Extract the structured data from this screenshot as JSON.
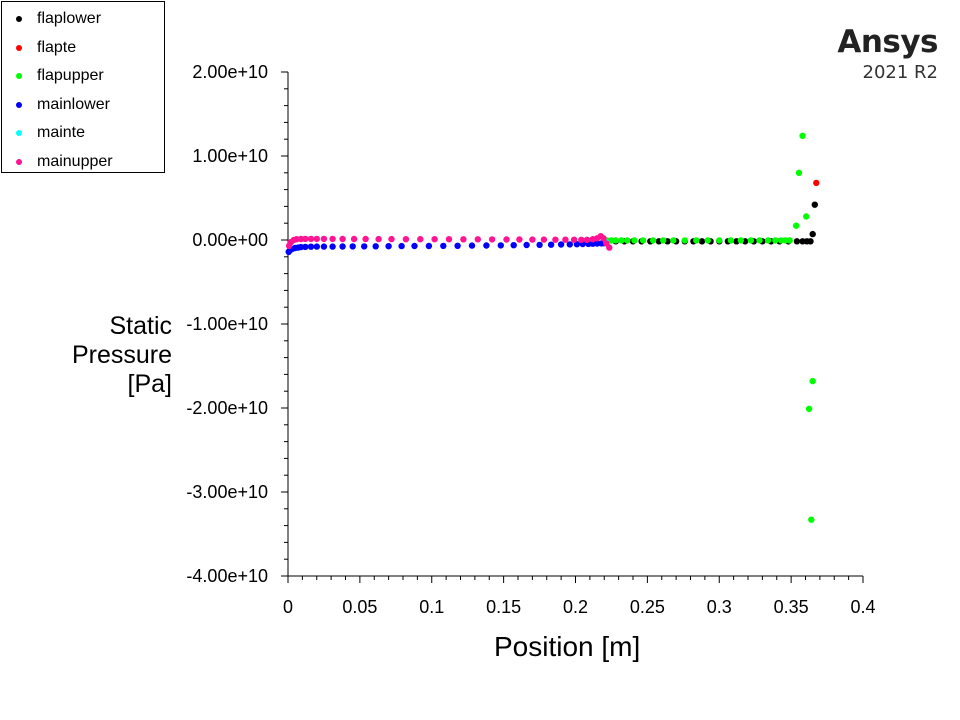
{
  "chart_data": {
    "type": "scatter",
    "xlabel": "Position [m]",
    "ylabel_lines": [
      "Static",
      "Pressure",
      "[Pa]"
    ],
    "xlim": [
      0,
      0.4
    ],
    "ylim": [
      -40000000000,
      20000000000
    ],
    "xticks": [
      "0",
      "0.05",
      "0.1",
      "0.15",
      "0.2",
      "0.25",
      "0.3",
      "0.35",
      "0.4"
    ],
    "yticks": [
      "2.00e+10",
      "1.00e+10",
      "0.00e+00",
      "-1.00e+10",
      "-2.00e+10",
      "-3.00e+10",
      "-4.00e+10"
    ],
    "grid": false,
    "legend_position": "top-left",
    "series": [
      {
        "name": "flaplower",
        "color": "#000000",
        "points": [
          [
            0.222,
            -150000000
          ],
          [
            0.228,
            -150000000
          ],
          [
            0.234,
            -150000000
          ],
          [
            0.24,
            -150000000
          ],
          [
            0.246,
            -150000000
          ],
          [
            0.252,
            -150000000
          ],
          [
            0.258,
            -150000000
          ],
          [
            0.264,
            -150000000
          ],
          [
            0.27,
            -150000000
          ],
          [
            0.276,
            -150000000
          ],
          [
            0.282,
            -150000000
          ],
          [
            0.288,
            -150000000
          ],
          [
            0.294,
            -150000000
          ],
          [
            0.3,
            -150000000
          ],
          [
            0.306,
            -150000000
          ],
          [
            0.312,
            -150000000
          ],
          [
            0.318,
            -150000000
          ],
          [
            0.324,
            -150000000
          ],
          [
            0.33,
            -150000000
          ],
          [
            0.336,
            -150000000
          ],
          [
            0.342,
            -150000000
          ],
          [
            0.348,
            -150000000
          ],
          [
            0.354,
            -150000000
          ],
          [
            0.358,
            -150000000
          ],
          [
            0.361,
            -150000000
          ],
          [
            0.3635,
            -150000000
          ],
          [
            0.365,
            700000000
          ],
          [
            0.3665,
            4200000000
          ]
        ]
      },
      {
        "name": "flapte",
        "color": "#ff0000",
        "points": [
          [
            0.3675,
            6800000000
          ]
        ]
      },
      {
        "name": "flapupper",
        "color": "#00ff00",
        "points": [
          [
            0.222,
            -50000000
          ],
          [
            0.225,
            -50000000
          ],
          [
            0.228,
            -50000000
          ],
          [
            0.232,
            -50000000
          ],
          [
            0.236,
            -50000000
          ],
          [
            0.241,
            -50000000
          ],
          [
            0.247,
            -50000000
          ],
          [
            0.254,
            -50000000
          ],
          [
            0.261,
            -50000000
          ],
          [
            0.268,
            -50000000
          ],
          [
            0.276,
            -50000000
          ],
          [
            0.284,
            -50000000
          ],
          [
            0.292,
            -50000000
          ],
          [
            0.3,
            -50000000
          ],
          [
            0.308,
            -50000000
          ],
          [
            0.315,
            -50000000
          ],
          [
            0.322,
            -50000000
          ],
          [
            0.328,
            -50000000
          ],
          [
            0.334,
            -50000000
          ],
          [
            0.339,
            -50000000
          ],
          [
            0.343,
            -50000000
          ],
          [
            0.346,
            -50000000
          ],
          [
            0.349,
            -50000000
          ],
          [
            0.3535,
            1700000000
          ],
          [
            0.3555,
            8000000000
          ],
          [
            0.358,
            12400000000
          ],
          [
            0.3605,
            2800000000
          ],
          [
            0.3625,
            -20100000000
          ],
          [
            0.364,
            -33300000000
          ],
          [
            0.365,
            -16800000000
          ]
        ]
      },
      {
        "name": "mainlower",
        "color": "#0000ff",
        "points": [
          [
            0.0005,
            -1400000000
          ],
          [
            0.0015,
            -1200000000
          ],
          [
            0.003,
            -1050000000
          ],
          [
            0.005,
            -950000000
          ],
          [
            0.007,
            -900000000
          ],
          [
            0.009,
            -850000000
          ],
          [
            0.012,
            -820000000
          ],
          [
            0.016,
            -800000000
          ],
          [
            0.02,
            -790000000
          ],
          [
            0.025,
            -780000000
          ],
          [
            0.031,
            -780000000
          ],
          [
            0.038,
            -770000000
          ],
          [
            0.045,
            -760000000
          ],
          [
            0.053,
            -760000000
          ],
          [
            0.061,
            -750000000
          ],
          [
            0.07,
            -740000000
          ],
          [
            0.079,
            -730000000
          ],
          [
            0.088,
            -720000000
          ],
          [
            0.098,
            -710000000
          ],
          [
            0.108,
            -700000000
          ],
          [
            0.118,
            -690000000
          ],
          [
            0.128,
            -670000000
          ],
          [
            0.138,
            -660000000
          ],
          [
            0.148,
            -640000000
          ],
          [
            0.157,
            -620000000
          ],
          [
            0.166,
            -600000000
          ],
          [
            0.175,
            -580000000
          ],
          [
            0.183,
            -560000000
          ],
          [
            0.19,
            -540000000
          ],
          [
            0.196,
            -520000000
          ],
          [
            0.201,
            -500000000
          ],
          [
            0.205,
            -480000000
          ],
          [
            0.209,
            -460000000
          ],
          [
            0.212,
            -440000000
          ],
          [
            0.215,
            -420000000
          ],
          [
            0.218,
            -400000000
          ],
          [
            0.22,
            -380000000
          ]
        ]
      },
      {
        "name": "mainte",
        "color": "#00ffff",
        "points": [
          [
            0.2215,
            -300000000
          ]
        ]
      },
      {
        "name": "mainupper",
        "color": "#ff1493",
        "points": [
          [
            0.0008,
            -700000000
          ],
          [
            0.002,
            -250000000
          ],
          [
            0.004,
            0
          ],
          [
            0.006,
            100000000
          ],
          [
            0.009,
            120000000
          ],
          [
            0.012,
            130000000
          ],
          [
            0.016,
            130000000
          ],
          [
            0.02,
            130000000
          ],
          [
            0.025,
            130000000
          ],
          [
            0.031,
            130000000
          ],
          [
            0.038,
            120000000
          ],
          [
            0.046,
            120000000
          ],
          [
            0.054,
            120000000
          ],
          [
            0.063,
            110000000
          ],
          [
            0.072,
            110000000
          ],
          [
            0.082,
            100000000
          ],
          [
            0.092,
            100000000
          ],
          [
            0.102,
            90000000
          ],
          [
            0.112,
            90000000
          ],
          [
            0.122,
            80000000
          ],
          [
            0.132,
            80000000
          ],
          [
            0.142,
            70000000
          ],
          [
            0.152,
            60000000
          ],
          [
            0.161,
            60000000
          ],
          [
            0.17,
            50000000
          ],
          [
            0.178,
            50000000
          ],
          [
            0.186,
            40000000
          ],
          [
            0.193,
            30000000
          ],
          [
            0.199,
            30000000
          ],
          [
            0.204,
            20000000
          ],
          [
            0.208,
            20000000
          ],
          [
            0.212,
            100000000
          ],
          [
            0.215,
            200000000
          ],
          [
            0.2175,
            450000000
          ],
          [
            0.2195,
            200000000
          ],
          [
            0.2215,
            -400000000
          ],
          [
            0.2235,
            -900000000
          ]
        ]
      }
    ]
  },
  "brand": {
    "name": "Ansys",
    "version": "2021 R2"
  }
}
